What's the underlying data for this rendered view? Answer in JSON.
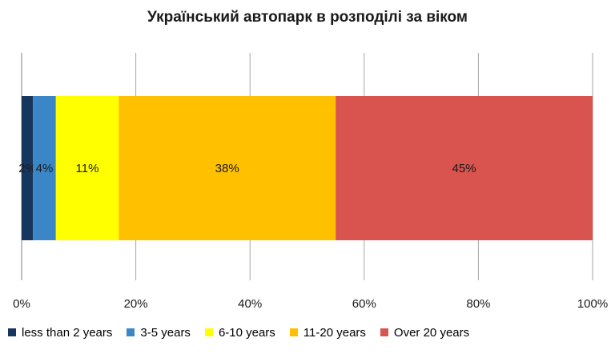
{
  "chart_data": {
    "type": "bar",
    "orientation": "horizontal",
    "stacked": true,
    "title": "Український автопарк в розподілі за віком",
    "xlabel": "",
    "ylabel": "",
    "xlim": [
      0,
      100
    ],
    "x_ticks": [
      "0%",
      "20%",
      "40%",
      "60%",
      "80%",
      "100%"
    ],
    "grid": "vertical",
    "legend_position": "bottom",
    "series": [
      {
        "name": "less than 2 years",
        "value": 2,
        "label": "2%",
        "color": "#17365d"
      },
      {
        "name": "3-5 years",
        "value": 4,
        "label": "4%",
        "color": "#3a86c6"
      },
      {
        "name": "6-10 years",
        "value": 11,
        "label": "11%",
        "color": "#ffff00"
      },
      {
        "name": "11-20 years",
        "value": 38,
        "label": "38%",
        "color": "#ffc000"
      },
      {
        "name": "Over 20 years",
        "value": 45,
        "label": "45%",
        "color": "#d9534f"
      }
    ]
  }
}
